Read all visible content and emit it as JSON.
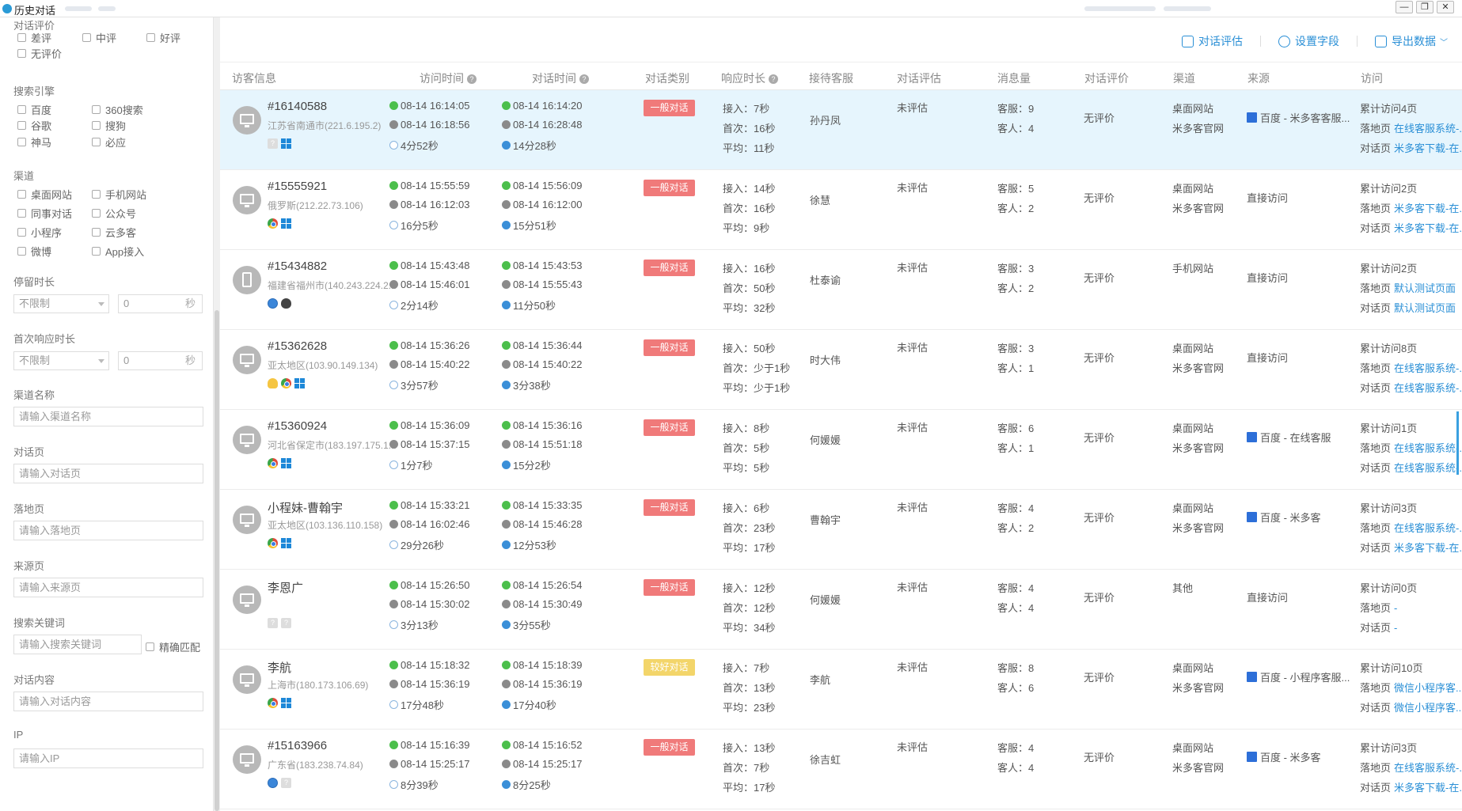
{
  "window": {
    "title": "历史对话",
    "controls": [
      "—",
      "❐",
      "✕"
    ]
  },
  "sidebar": {
    "eval": {
      "title": "对话评价",
      "options": [
        "差评",
        "中评",
        "好评",
        "无评价"
      ]
    },
    "engine": {
      "title": "搜索引擎",
      "options": [
        "百度",
        "360搜索",
        "谷歌",
        "搜狗",
        "神马",
        "必应"
      ]
    },
    "channel": {
      "title": "渠道",
      "options": [
        "桌面网站",
        "手机网站",
        "同事对话",
        "公众号",
        "小程序",
        "云多客",
        "微博",
        "App接入"
      ]
    },
    "stay": {
      "title": "停留时长",
      "select": "不限制",
      "value": "0",
      "unit": "秒"
    },
    "first_resp": {
      "title": "首次响应时长",
      "select": "不限制",
      "value": "0",
      "unit": "秒"
    },
    "channel_name": {
      "title": "渠道名称",
      "placeholder": "请输入渠道名称"
    },
    "chat_page": {
      "title": "对话页",
      "placeholder": "请输入对话页"
    },
    "landing_page": {
      "title": "落地页",
      "placeholder": "请输入落地页"
    },
    "source_page": {
      "title": "来源页",
      "placeholder": "请输入来源页"
    },
    "keyword": {
      "title": "搜索关键词",
      "placeholder": "请输入搜索关键词",
      "exact": "精确匹配"
    },
    "content": {
      "title": "对话内容",
      "placeholder": "请输入对话内容"
    },
    "ip": {
      "title": "IP",
      "placeholder": "请输入IP"
    }
  },
  "toolbar": {
    "assess": "对话评估",
    "fields": "设置字段",
    "export": "导出数据"
  },
  "columns": [
    "访客信息",
    "访问时间",
    "对话时间",
    "对话类别",
    "响应时长",
    "接待客服",
    "对话评估",
    "消息量",
    "对话评价",
    "渠道",
    "来源",
    "访问"
  ],
  "rows": [
    {
      "name": "#16140588",
      "loc": "江苏省南通市(221.6.195.2)",
      "icons": [
        "unknown",
        "win"
      ],
      "device": "pc",
      "visit_start": "08-14 16:14:05",
      "visit_end": "08-14 16:18:56",
      "visit_dur": "4分52秒",
      "chat_start": "08-14 16:14:20",
      "chat_end": "08-14 16:28:48",
      "chat_dur": "14分28秒",
      "category": "一般对话",
      "cat_color": "red",
      "resp1": "接入：7秒",
      "resp2": "首次：16秒",
      "resp3": "平均：11秒",
      "agent": "孙丹凤",
      "assess": "未评估",
      "msg1": "客服：9",
      "msg2": "客人：4",
      "rating": "无评价",
      "channel1": "桌面网站",
      "channel2": "米多客官网",
      "source": "百度 - 米多客客服...",
      "source_icon": true,
      "v1": "累计访问4页",
      "v2_label": "落地页",
      "v2": "在线客服系统-...",
      "v3_label": "对话页",
      "v3": "米多客下载-在..."
    },
    {
      "name": "#15555921",
      "loc": "俄罗斯(212.22.73.106)",
      "icons": [
        "chrome",
        "win"
      ],
      "device": "pc",
      "visit_start": "08-14 15:55:59",
      "visit_end": "08-14 16:12:03",
      "visit_dur": "16分5秒",
      "chat_start": "08-14 15:56:09",
      "chat_end": "08-14 16:12:00",
      "chat_dur": "15分51秒",
      "category": "一般对话",
      "cat_color": "red",
      "resp1": "接入：14秒",
      "resp2": "首次：16秒",
      "resp3": "平均：9秒",
      "agent": "徐慧",
      "assess": "未评估",
      "msg1": "客服：5",
      "msg2": "客人：2",
      "rating": "无评价",
      "channel1": "桌面网站",
      "channel2": "米多客官网",
      "source": "直接访问",
      "source_icon": false,
      "v1": "累计访问2页",
      "v2_label": "落地页",
      "v2": "米多客下载-在...",
      "v3_label": "对话页",
      "v3": "米多客下载-在..."
    },
    {
      "name": "#15434882",
      "loc": "福建省福州市(140.243.224.2...",
      "icons": [
        "safari",
        "apple"
      ],
      "device": "phone",
      "visit_start": "08-14 15:43:48",
      "visit_end": "08-14 15:46:01",
      "visit_dur": "2分14秒",
      "chat_start": "08-14 15:43:53",
      "chat_end": "08-14 15:55:43",
      "chat_dur": "11分50秒",
      "category": "一般对话",
      "cat_color": "red",
      "resp1": "接入：16秒",
      "resp2": "首次：50秒",
      "resp3": "平均：32秒",
      "agent": "杜泰谕",
      "assess": "未评估",
      "msg1": "客服：3",
      "msg2": "客人：2",
      "rating": "无评价",
      "channel1": "手机网站",
      "channel2": "",
      "source": "直接访问",
      "source_icon": false,
      "v1": "累计访问2页",
      "v2_label": "落地页",
      "v2": "默认测试页面",
      "v3_label": "对话页",
      "v3": "默认测试页面"
    },
    {
      "name": "#15362628",
      "loc": "亚太地区(103.90.149.134)",
      "icons": [
        "bulb",
        "chrome",
        "win"
      ],
      "device": "pc",
      "visit_start": "08-14 15:36:26",
      "visit_end": "08-14 15:40:22",
      "visit_dur": "3分57秒",
      "chat_start": "08-14 15:36:44",
      "chat_end": "08-14 15:40:22",
      "chat_dur": "3分38秒",
      "category": "一般对话",
      "cat_color": "red",
      "resp1": "接入：50秒",
      "resp2": "首次：少于1秒",
      "resp3": "平均：少于1秒",
      "agent": "时大伟",
      "assess": "未评估",
      "msg1": "客服：3",
      "msg2": "客人：1",
      "rating": "无评价",
      "channel1": "桌面网站",
      "channel2": "米多客官网",
      "source": "直接访问",
      "source_icon": false,
      "v1": "累计访问8页",
      "v2_label": "落地页",
      "v2": "在线客服系统-...",
      "v3_label": "对话页",
      "v3": "在线客服系统-..."
    },
    {
      "name": "#15360924",
      "loc": "河北省保定市(183.197.175.1...",
      "icons": [
        "chrome",
        "win"
      ],
      "device": "pc",
      "visit_start": "08-14 15:36:09",
      "visit_end": "08-14 15:37:15",
      "visit_dur": "1分7秒",
      "chat_start": "08-14 15:36:16",
      "chat_end": "08-14 15:51:18",
      "chat_dur": "15分2秒",
      "category": "一般对话",
      "cat_color": "red",
      "resp1": "接入：8秒",
      "resp2": "首次：5秒",
      "resp3": "平均：5秒",
      "agent": "何媛媛",
      "assess": "未评估",
      "msg1": "客服：6",
      "msg2": "客人：1",
      "rating": "无评价",
      "channel1": "桌面网站",
      "channel2": "米多客官网",
      "source": "百度 - 在线客服",
      "source_icon": true,
      "v1": "累计访问1页",
      "v2_label": "落地页",
      "v2": "在线客服系统-...",
      "v3_label": "对话页",
      "v3": "在线客服系统-..."
    },
    {
      "name": "小程妹-曹翰宇",
      "loc": "亚太地区(103.136.110.158)",
      "icons": [
        "chrome",
        "win"
      ],
      "device": "pc",
      "visit_start": "08-14 15:33:21",
      "visit_end": "08-14 16:02:46",
      "visit_dur": "29分26秒",
      "chat_start": "08-14 15:33:35",
      "chat_end": "08-14 15:46:28",
      "chat_dur": "12分53秒",
      "category": "一般对话",
      "cat_color": "red",
      "resp1": "接入：6秒",
      "resp2": "首次：23秒",
      "resp3": "平均：17秒",
      "agent": "曹翰宇",
      "assess": "未评估",
      "msg1": "客服：4",
      "msg2": "客人：2",
      "rating": "无评价",
      "channel1": "桌面网站",
      "channel2": "米多客官网",
      "source": "百度 - 米多客",
      "source_icon": true,
      "v1": "累计访问3页",
      "v2_label": "落地页",
      "v2": "在线客服系统-...",
      "v3_label": "对话页",
      "v3": "米多客下载-在..."
    },
    {
      "name": "李恩广",
      "loc": "",
      "icons": [
        "unknown",
        "unknown"
      ],
      "device": "pc",
      "visit_start": "08-14 15:26:50",
      "visit_end": "08-14 15:30:02",
      "visit_dur": "3分13秒",
      "chat_start": "08-14 15:26:54",
      "chat_end": "08-14 15:30:49",
      "chat_dur": "3分55秒",
      "category": "一般对话",
      "cat_color": "red",
      "resp1": "接入：12秒",
      "resp2": "首次：12秒",
      "resp3": "平均：34秒",
      "agent": "何媛媛",
      "assess": "未评估",
      "msg1": "客服：4",
      "msg2": "客人：4",
      "rating": "无评价",
      "channel1": "其他",
      "channel2": "",
      "source": "直接访问",
      "source_icon": false,
      "v1": "累计访问0页",
      "v2_label": "落地页",
      "v2": "-",
      "v3_label": "对话页",
      "v3": "-"
    },
    {
      "name": "李航",
      "loc": "上海市(180.173.106.69)",
      "icons": [
        "chrome",
        "win"
      ],
      "device": "pc",
      "visit_start": "08-14 15:18:32",
      "visit_end": "08-14 15:36:19",
      "visit_dur": "17分48秒",
      "chat_start": "08-14 15:18:39",
      "chat_end": "08-14 15:36:19",
      "chat_dur": "17分40秒",
      "category": "较好对话",
      "cat_color": "yellow",
      "resp1": "接入：7秒",
      "resp2": "首次：13秒",
      "resp3": "平均：23秒",
      "agent": "李航",
      "assess": "未评估",
      "msg1": "客服：8",
      "msg2": "客人：6",
      "rating": "无评价",
      "channel1": "桌面网站",
      "channel2": "米多客官网",
      "source": "百度 - 小程序客服...",
      "source_icon": true,
      "v1": "累计访问10页",
      "v2_label": "落地页",
      "v2": "微信小程序客...",
      "v3_label": "对话页",
      "v3": "微信小程序客..."
    },
    {
      "name": "#15163966",
      "loc": "广东省(183.238.74.84)",
      "icons": [
        "safari",
        "unknown"
      ],
      "device": "pc",
      "visit_start": "08-14 15:16:39",
      "visit_end": "08-14 15:25:17",
      "visit_dur": "8分39秒",
      "chat_start": "08-14 15:16:52",
      "chat_end": "08-14 15:25:17",
      "chat_dur": "8分25秒",
      "category": "一般对话",
      "cat_color": "red",
      "resp1": "接入：13秒",
      "resp2": "首次：7秒",
      "resp3": "平均：17秒",
      "agent": "徐吉虹",
      "assess": "未评估",
      "msg1": "客服：4",
      "msg2": "客人：4",
      "rating": "无评价",
      "channel1": "桌面网站",
      "channel2": "米多客官网",
      "source": "百度 - 米多客",
      "source_icon": true,
      "v1": "累计访问3页",
      "v2_label": "落地页",
      "v2": "在线客服系统-...",
      "v3_label": "对话页",
      "v3": "米多客下载-在..."
    }
  ]
}
